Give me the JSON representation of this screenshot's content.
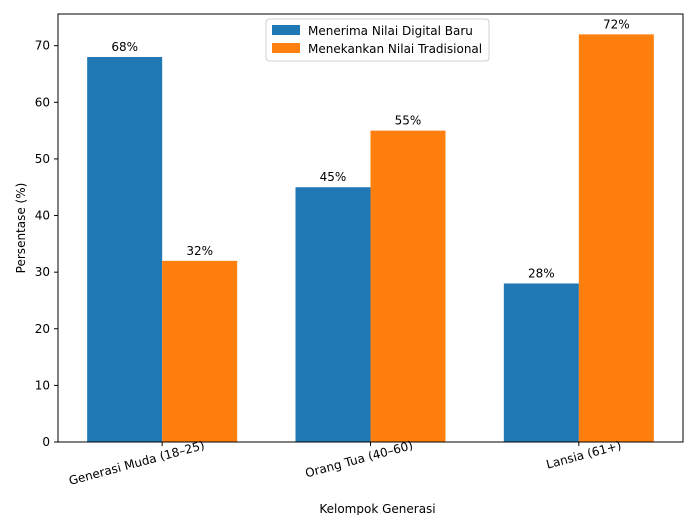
{
  "chart_data": {
    "type": "bar",
    "title": "",
    "xlabel": "Kelompok Generasi",
    "ylabel": "Persentase (%)",
    "categories": [
      "Generasi Muda (18–25)",
      "Orang Tua (40–60)",
      "Lansia (61+)"
    ],
    "series": [
      {
        "name": "Menerima Nilai Digital Baru",
        "values": [
          68,
          45,
          28
        ],
        "labels": [
          "68%",
          "45%",
          "28%"
        ],
        "color": "#1f77b4"
      },
      {
        "name": "Menekankan Nilai Tradisional",
        "values": [
          32,
          55,
          72
        ],
        "labels": [
          "32%",
          "55%",
          "72%"
        ],
        "color": "#ff7f0e"
      }
    ],
    "ylim": [
      0,
      75.6
    ],
    "yticks": [
      0,
      10,
      20,
      30,
      40,
      50,
      60,
      70
    ],
    "grid": false,
    "legend_position": "top-center"
  }
}
